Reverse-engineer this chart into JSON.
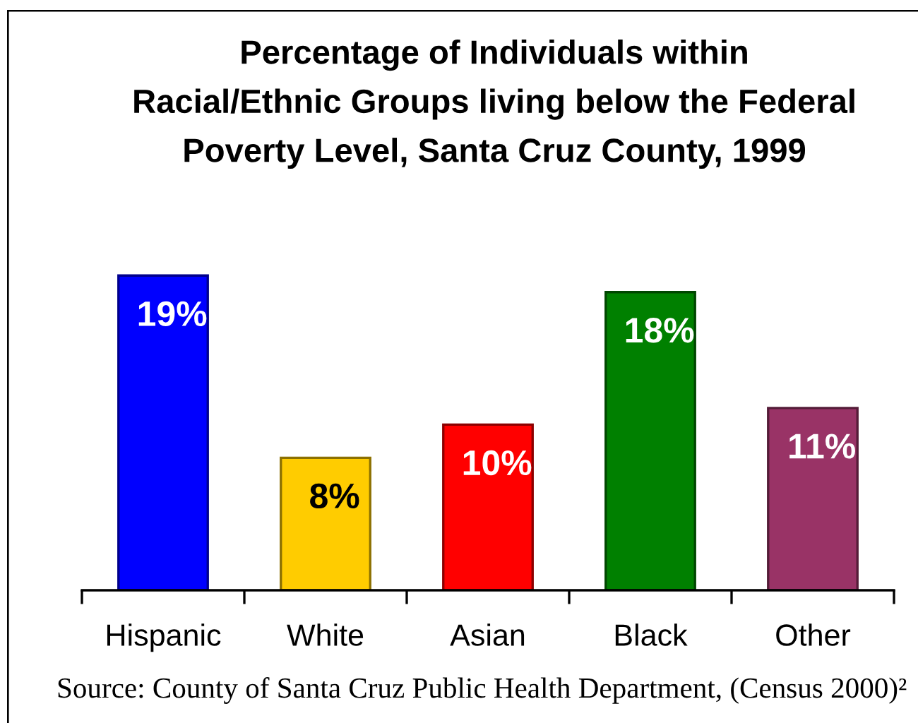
{
  "chart_data": {
    "type": "bar",
    "title": "Percentage of Individuals within\nRacial/Ethnic Groups living below the Federal\nPoverty Level, Santa Cruz County, 1999",
    "categories": [
      "Hispanic",
      "White",
      "Asian",
      "Black",
      "Other"
    ],
    "values": [
      19,
      8,
      10,
      18,
      11
    ],
    "colors": [
      "#0000ff",
      "#ffcc00",
      "#ff0000",
      "#008000",
      "#993366"
    ],
    "value_labels": [
      "19%",
      "8%",
      "10%",
      "18%",
      "11%"
    ],
    "grid": false,
    "legend": false,
    "annotations": [
      "Source: County of Santa Cruz Public Health Department, (Census 2000)²"
    ]
  }
}
